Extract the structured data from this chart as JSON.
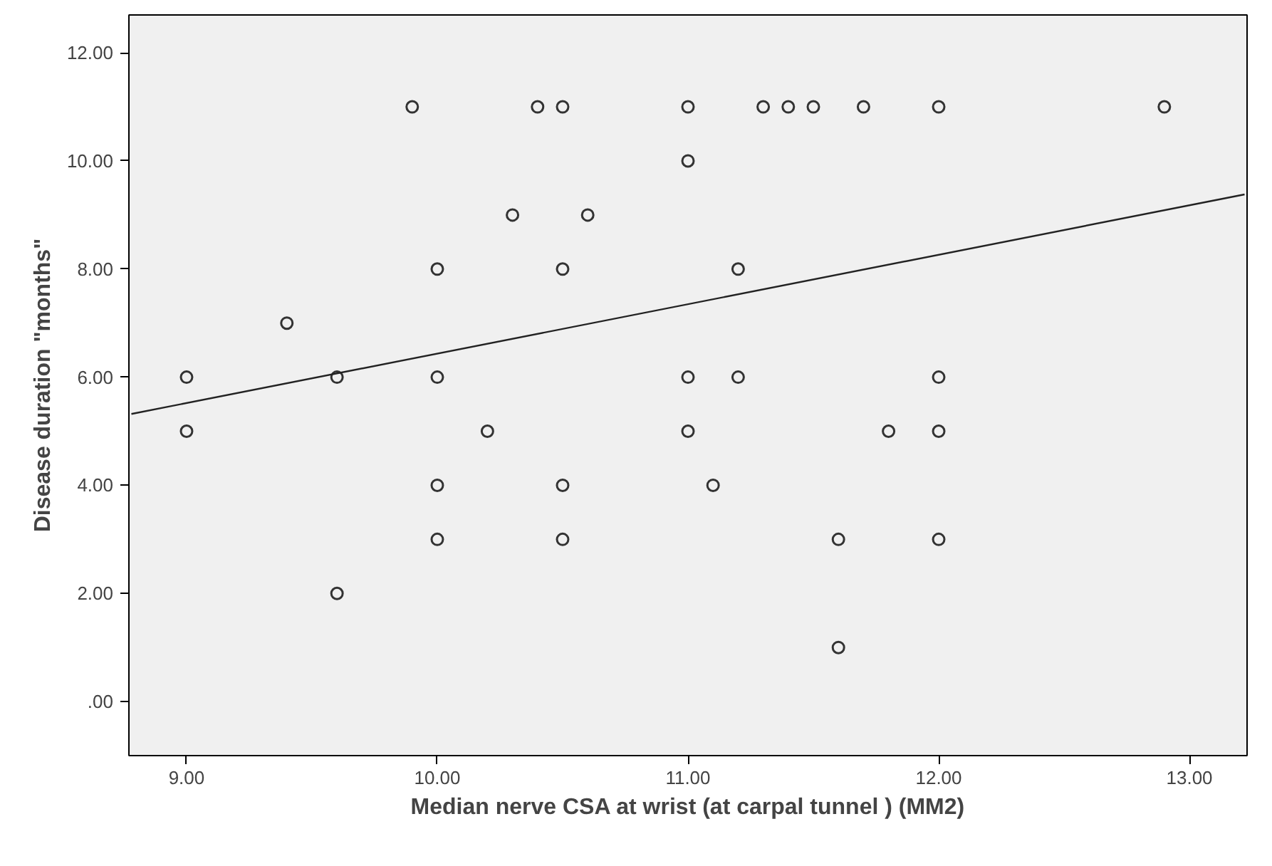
{
  "chart_data": {
    "type": "scatter",
    "xlabel": "Median nerve CSA at wrist (at carpal tunnel ) (MM2)",
    "ylabel": "Disease duration \"months\"",
    "grid": false,
    "xlim": [
      8.77,
      13.23
    ],
    "ylim": [
      -1.0,
      12.7
    ],
    "xticks": [
      {
        "value": 9,
        "label": "9.00"
      },
      {
        "value": 10,
        "label": "10.00"
      },
      {
        "value": 11,
        "label": "11.00"
      },
      {
        "value": 12,
        "label": "12.00"
      },
      {
        "value": 13,
        "label": "13.00"
      }
    ],
    "yticks": [
      {
        "value": 0,
        "label": ".00"
      },
      {
        "value": 2,
        "label": "2.00"
      },
      {
        "value": 4,
        "label": "4.00"
      },
      {
        "value": 6,
        "label": "6.00"
      },
      {
        "value": 8,
        "label": "8.00"
      },
      {
        "value": 10,
        "label": "10.00"
      },
      {
        "value": 12,
        "label": "12.00"
      }
    ],
    "series": [
      {
        "color": "#333333",
        "marker": "circle",
        "x": [
          9.9,
          10.4,
          10.5,
          11.0,
          11.3,
          11.4,
          11.5,
          11.7,
          12.0,
          12.9,
          11.0,
          10.3,
          10.6,
          10.0,
          10.5,
          11.2,
          9.4,
          9.0,
          9.6,
          10.0,
          11.0,
          11.2,
          12.0,
          9.0,
          10.2,
          11.0,
          11.8,
          12.0,
          10.0,
          10.5,
          11.1,
          10.0,
          10.5,
          11.6,
          12.0,
          9.6,
          11.6
        ],
        "values": [
          11,
          11,
          11,
          11,
          11,
          11,
          11,
          11,
          11,
          11,
          10,
          9,
          9,
          8,
          8,
          8,
          7,
          6,
          6,
          6,
          6,
          6,
          6,
          5,
          5,
          5,
          5,
          5,
          4,
          4,
          4,
          3,
          3,
          3,
          3,
          2,
          1
        ]
      },
      {
        "type": "line",
        "color": "#222222",
        "x": [
          8.78,
          13.22
        ],
        "values": [
          5.32,
          9.38
        ]
      }
    ]
  }
}
